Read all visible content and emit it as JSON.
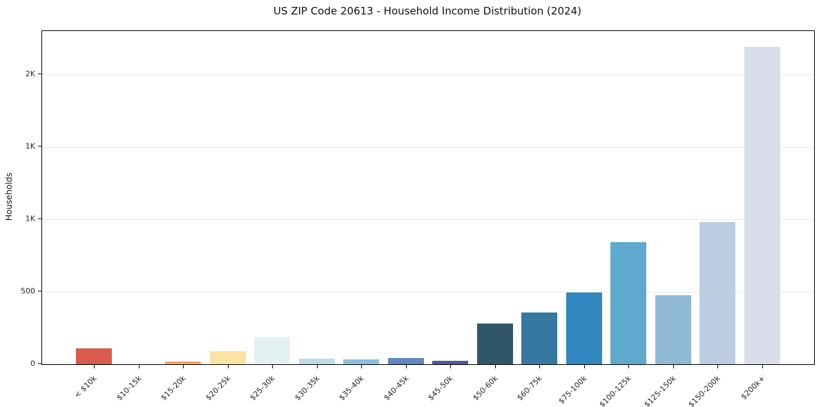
{
  "title": "US ZIP Code 20613 - Household Income Distribution (2024)",
  "chart_data": {
    "type": "bar",
    "title": "US ZIP Code 20613 - Household Income Distribution (2024)",
    "xlabel": "",
    "ylabel": "Households",
    "categories": [
      "< $10k",
      "$10-15k",
      "$15-20k",
      "$20-25k",
      "$25-30k",
      "$30-35k",
      "$35-40k",
      "$40-45k",
      "$45-50k",
      "$50-60k",
      "$60-75k",
      "$75-100k",
      "$100-125k",
      "$125-150k",
      "$150-200k",
      "$200k+"
    ],
    "values": [
      110,
      0,
      20,
      90,
      185,
      40,
      35,
      45,
      25,
      280,
      355,
      495,
      845,
      475,
      980,
      2190
    ],
    "bar_colors": [
      "#d85c4e",
      "#ee9c53",
      "#f2a862",
      "#fbe3a3",
      "#e4f1f3",
      "#bcdaea",
      "#90bedd",
      "#6286c0",
      "#5058a0",
      "#325669",
      "#3579a3",
      "#3187bf",
      "#60a9ce",
      "#8fb8d6",
      "#bccde2",
      "#d9dcea"
    ],
    "ylim": [
      0,
      2300
    ],
    "yticks": [
      {
        "value": 0,
        "label": "0"
      },
      {
        "value": 500,
        "label": "500"
      },
      {
        "value": 1000,
        "label": "1K"
      },
      {
        "value": 1500,
        "label": "1K"
      },
      {
        "value": 2000,
        "label": "2K"
      }
    ],
    "grid": true,
    "legend": false,
    "gridline_color": "#e7e7ec",
    "plot_border_color": "#000000"
  }
}
